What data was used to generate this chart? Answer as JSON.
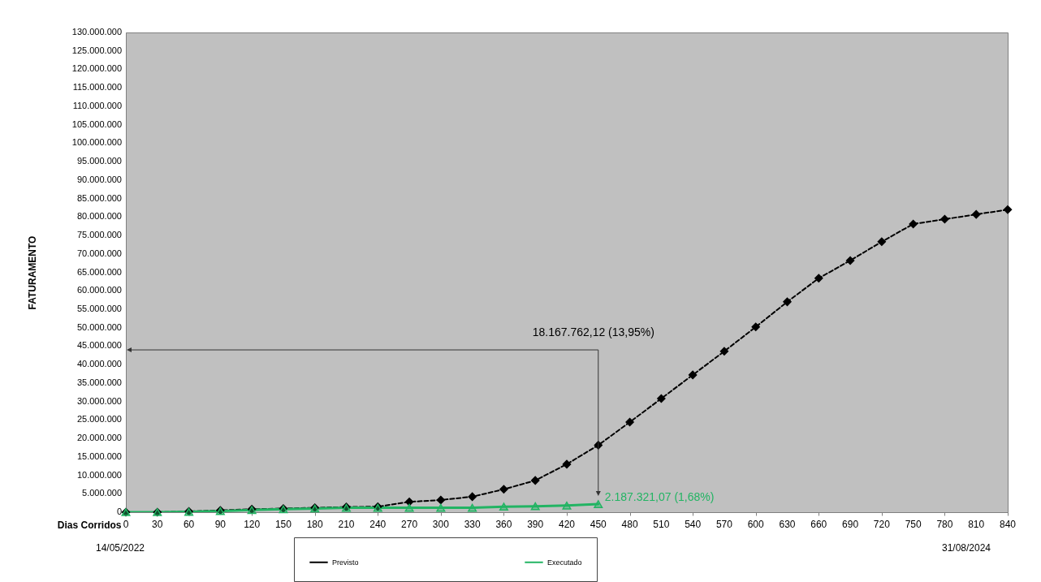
{
  "chart_data": {
    "type": "line",
    "xlabel": "Dias Corridos",
    "ylabel": "FATURAMENTO",
    "x": [
      0,
      30,
      60,
      90,
      120,
      150,
      180,
      210,
      240,
      270,
      300,
      330,
      360,
      390,
      420,
      450,
      480,
      510,
      540,
      570,
      600,
      630,
      660,
      690,
      720,
      750,
      780,
      810,
      840
    ],
    "series": [
      {
        "name": "Previsto",
        "color": "#000000",
        "marker": "diamond",
        "line_style": "dashed",
        "values": [
          0,
          0,
          200000,
          500000,
          800000,
          1000000,
          1200000,
          1400000,
          1500000,
          2800000,
          3300000,
          4200000,
          6200000,
          8600000,
          13000000,
          18167762.12,
          24400000,
          30800000,
          37200000,
          43600000,
          50200000,
          57000000,
          63400000,
          68200000,
          73300000,
          78100000,
          79400000,
          80700000,
          82000000
        ]
      },
      {
        "name": "Executado",
        "color": "#22b463",
        "marker": "triangle",
        "line_style": "solid",
        "values": [
          0,
          0,
          100000,
          300000,
          600000,
          800000,
          1000000,
          1200000,
          1200000,
          1200000,
          1200000,
          1200000,
          1500000,
          1600000,
          1800000,
          2187321.07,
          null,
          null,
          null,
          null,
          null,
          null,
          null,
          null,
          null,
          null,
          null,
          null,
          null
        ]
      }
    ],
    "xlim": [
      0,
      840
    ],
    "xticks": [
      0,
      30,
      60,
      90,
      120,
      150,
      180,
      210,
      240,
      270,
      300,
      330,
      360,
      390,
      420,
      450,
      480,
      510,
      540,
      570,
      600,
      630,
      660,
      690,
      720,
      750,
      780,
      810,
      840
    ],
    "ylim": [
      0,
      130000000
    ],
    "yticks": [
      0,
      {
        "value": 5000000,
        "label": "5.000.000"
      },
      {
        "value": 10000000,
        "label": "10.000.000"
      },
      {
        "value": 15000000,
        "label": "15.000.000"
      },
      {
        "value": 20000000,
        "label": "20.000.000"
      },
      {
        "value": 25000000,
        "label": "25.000.000"
      },
      {
        "value": 30000000,
        "label": "30.000.000"
      },
      {
        "value": 35000000,
        "label": "35.000.000"
      },
      {
        "value": 40000000,
        "label": "40.000.000"
      },
      {
        "value": 45000000,
        "label": "45.000.000"
      },
      {
        "value": 50000000,
        "label": "50.000.000"
      },
      {
        "value": 55000000,
        "label": "55.000.000"
      },
      {
        "value": 60000000,
        "label": "60.000.000"
      },
      {
        "value": 65000000,
        "label": "65.000.000"
      },
      {
        "value": 70000000,
        "label": "70.000.000"
      },
      {
        "value": 75000000,
        "label": "75.000.000"
      },
      {
        "value": 80000000,
        "label": "80.000.000"
      },
      {
        "value": 85000000,
        "label": "85.000.000"
      },
      {
        "value": 90000000,
        "label": "90.000.000"
      },
      {
        "value": 95000000,
        "label": "95.000.000"
      },
      {
        "value": 100000000,
        "label": "100.000.000"
      },
      {
        "value": 105000000,
        "label": "105.000.000"
      },
      {
        "value": 110000000,
        "label": "110.000.000"
      },
      {
        "value": 115000000,
        "label": "115.000.000"
      },
      {
        "value": 120000000,
        "label": "120.000.000"
      },
      {
        "value": 125000000,
        "label": "125.000.000"
      },
      {
        "value": 130000000,
        "label": "130.000.000"
      }
    ],
    "grid": false,
    "legend": "bottom",
    "annotations": [
      "18.167.762,12 (13,95%)",
      {
        "text": "2.187.321,07 (1,68%)",
        "x": 450,
        "y": 2187321.07
      },
      "14/05/2022",
      "31/08/2024"
    ]
  }
}
